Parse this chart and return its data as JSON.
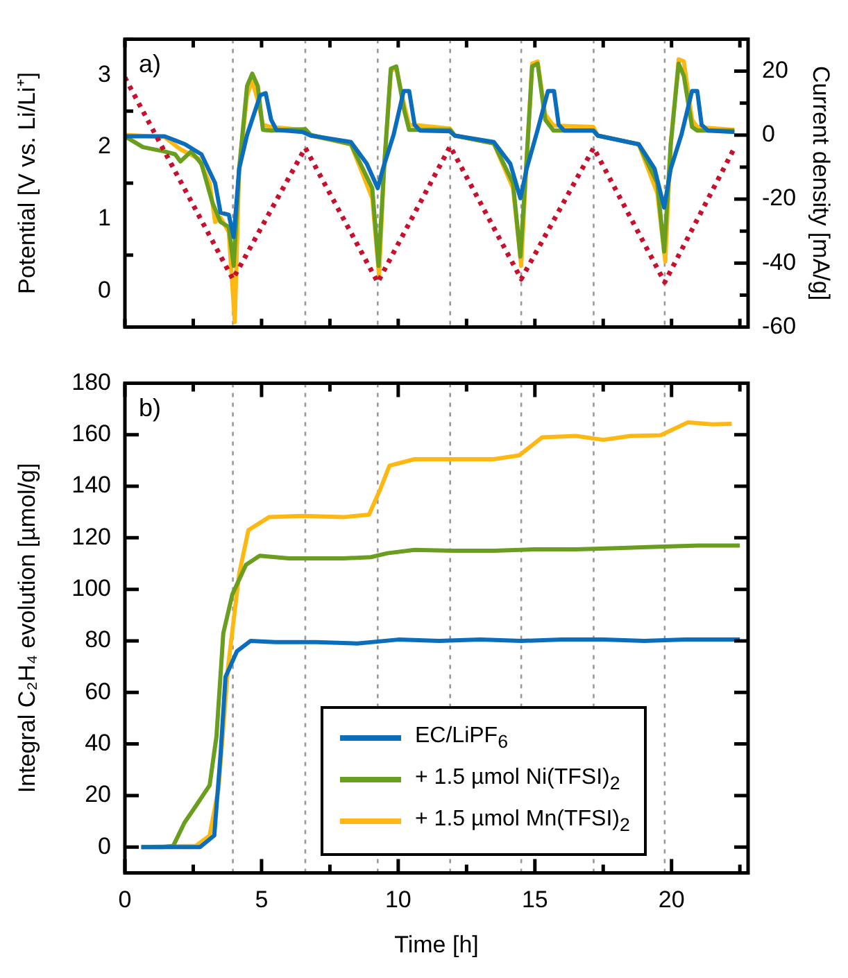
{
  "chart_data": [
    {
      "type": "line",
      "ylabel": "Potential [V vs. Li/Li⁺]",
      "y2label": "Current density [mA/g]",
      "annotations": [
        "a)"
      ],
      "tick_labels": "y",
      "xlim": [
        0,
        22.8
      ],
      "xticks": [
        {
          "value": 0,
          "label": null
        },
        {
          "value": 2.5,
          "label": null
        },
        {
          "value": 5,
          "label": null
        },
        {
          "value": 7.5,
          "label": null
        },
        {
          "value": 10,
          "label": null
        },
        {
          "value": 12.5,
          "label": null
        },
        {
          "value": 15,
          "label": null
        },
        {
          "value": 17.5,
          "label": null
        },
        {
          "value": 20,
          "label": null
        },
        {
          "value": 22.5,
          "label": null
        }
      ],
      "ylim": [
        -0.5,
        3.5
      ],
      "yticks": [
        {
          "value": -0.5,
          "label": null
        },
        0,
        {
          "value": 0.5,
          "label": null
        },
        1,
        {
          "value": 1.5,
          "label": null
        },
        2,
        {
          "value": 2.5,
          "label": null
        },
        3,
        {
          "value": 3.5,
          "label": null
        }
      ],
      "y2lim": [
        -60,
        30
      ],
      "y2ticks": [
        -60,
        {
          "value": -50,
          "label": null
        },
        -40,
        {
          "value": -30,
          "label": null
        },
        -20,
        {
          "value": -10,
          "label": null
        },
        0,
        {
          "value": 10,
          "label": null
        },
        20,
        {
          "value": 30,
          "label": null
        }
      ],
      "ref_lines": [
        {
          "axis": "x",
          "value": 3.95,
          "color": "#999999",
          "line_style": "dotted"
        },
        {
          "axis": "x",
          "value": 6.6,
          "color": "#999999",
          "line_style": "dotted"
        },
        {
          "axis": "x",
          "value": 9.25,
          "color": "#999999",
          "line_style": "dotted"
        },
        {
          "axis": "x",
          "value": 11.9,
          "color": "#999999",
          "line_style": "dotted"
        },
        {
          "axis": "x",
          "value": 14.5,
          "color": "#999999",
          "line_style": "dotted"
        },
        {
          "axis": "x",
          "value": 17.15,
          "color": "#999999",
          "line_style": "dotted"
        },
        {
          "axis": "x",
          "value": 19.75,
          "color": "#999999",
          "line_style": "dotted"
        }
      ],
      "series": [
        {
          "color": "#c8102e",
          "axis": "y2",
          "line_style": "dotted",
          "x": [
            0,
            3.95,
            6.6,
            9.25,
            11.9,
            14.5,
            17.15,
            19.75,
            22.3
          ],
          "values": [
            18,
            -45,
            -4,
            -46,
            -3.5,
            -45,
            -4,
            -46,
            -4
          ]
        },
        {
          "color": "#0a6ebd",
          "x": [
            0,
            1.45,
            2.2,
            2.8,
            3.3,
            3.5,
            3.8,
            3.98,
            4.18,
            4.47,
            4.95,
            5.15,
            5.35,
            5.54,
            6.5,
            6.8,
            8.27,
            8.85,
            9.25,
            9.44,
            9.83,
            10.2,
            10.4,
            10.6,
            10.8,
            11.88,
            12.07,
            13.5,
            14.1,
            14.47,
            14.7,
            15.1,
            15.48,
            15.7,
            15.87,
            16.07,
            17.14,
            17.3,
            18.8,
            19.38,
            19.73,
            19.97,
            20.36,
            20.75,
            20.94,
            21.1,
            21.33,
            22.3
          ],
          "values": [
            2.15,
            2.15,
            2.04,
            1.9,
            1.5,
            1.09,
            1.06,
            0.75,
            1.7,
            2.17,
            2.72,
            2.75,
            2.38,
            2.24,
            2.21,
            2.16,
            2.07,
            1.77,
            1.43,
            1.7,
            2.17,
            2.78,
            2.78,
            2.31,
            2.23,
            2.22,
            2.16,
            2.07,
            1.77,
            1.29,
            1.7,
            2.24,
            2.78,
            2.78,
            2.31,
            2.23,
            2.23,
            2.16,
            2.04,
            1.7,
            1.16,
            1.7,
            2.17,
            2.78,
            2.78,
            2.31,
            2.23,
            2.21
          ]
        },
        {
          "color": "#6a9e1f",
          "x": [
            0,
            0.66,
            1.45,
            1.84,
            2.03,
            2.42,
            2.8,
            3.2,
            3.5,
            3.8,
            3.98,
            4.18,
            4.47,
            4.66,
            4.86,
            5.05,
            5.35,
            6.6,
            6.8,
            8.27,
            9.05,
            9.28,
            9.48,
            9.73,
            9.93,
            10.22,
            10.4,
            11.9,
            12.07,
            13.5,
            14.2,
            14.47,
            14.7,
            14.9,
            15.1,
            15.38,
            15.68,
            17.14,
            17.3,
            18.8,
            19.48,
            19.73,
            19.97,
            20.26,
            20.45,
            20.75,
            20.94,
            22.3
          ],
          "values": [
            2.15,
            2.0,
            1.94,
            1.9,
            1.8,
            1.94,
            1.77,
            1.23,
            0.96,
            0.89,
            0.35,
            1.7,
            2.85,
            3.02,
            2.85,
            2.24,
            2.23,
            2.25,
            2.17,
            2.04,
            1.43,
            0.35,
            1.7,
            3.09,
            3.12,
            2.51,
            2.24,
            2.24,
            2.16,
            2.05,
            1.5,
            0.48,
            1.84,
            3.12,
            3.16,
            2.38,
            2.23,
            2.23,
            2.16,
            2.04,
            1.5,
            0.55,
            2.04,
            3.16,
            2.99,
            2.28,
            2.23,
            2.23
          ]
        },
        {
          "color": "#fdb813",
          "x": [
            0,
            1.45,
            2.03,
            2.7,
            3.1,
            3.3,
            3.5,
            3.8,
            4.02,
            4.18,
            4.47,
            4.66,
            4.86,
            5.05,
            5.35,
            6.5,
            6.8,
            8.27,
            9.05,
            9.3,
            9.48,
            9.73,
            9.93,
            10.22,
            10.4,
            10.8,
            11.88,
            12.07,
            13.5,
            14.2,
            14.5,
            14.7,
            14.9,
            15.1,
            15.38,
            15.68,
            17.14,
            17.3,
            18.8,
            19.48,
            19.77,
            19.97,
            20.26,
            20.45,
            20.75,
            20.94,
            22.3
          ],
          "values": [
            2.17,
            2.14,
            1.97,
            1.84,
            1.5,
            0.96,
            1.02,
            0.82,
            -0.43,
            1.7,
            2.72,
            2.92,
            2.65,
            2.31,
            2.28,
            2.24,
            2.16,
            2.04,
            1.29,
            0.21,
            1.7,
            3.06,
            3.09,
            2.58,
            2.31,
            2.3,
            2.26,
            2.16,
            2.05,
            1.43,
            0.35,
            1.84,
            3.16,
            3.19,
            2.45,
            2.3,
            2.28,
            2.16,
            2.04,
            1.36,
            0.41,
            2.04,
            3.22,
            3.19,
            2.38,
            2.28,
            2.24
          ]
        }
      ]
    },
    {
      "type": "line",
      "xlabel": "Time [h]",
      "ylabel": "Integral C₂H₄ evolution [µmol/g]",
      "annotations": [
        "b)"
      ],
      "legend": "bottom right",
      "xlim": [
        0,
        22.8
      ],
      "xticks": [
        0,
        {
          "value": 2.5,
          "label": null
        },
        5,
        {
          "value": 7.5,
          "label": null
        },
        10,
        {
          "value": 12.5,
          "label": null
        },
        15,
        {
          "value": 17.5,
          "label": null
        },
        20,
        {
          "value": 22.5,
          "label": null
        }
      ],
      "ylim": [
        -10,
        180
      ],
      "yticks": [
        0,
        20,
        40,
        60,
        80,
        100,
        120,
        140,
        160,
        180
      ],
      "ref_lines": [
        {
          "axis": "x",
          "value": 3.95,
          "color": "#999999",
          "line_style": "dotted"
        },
        {
          "axis": "x",
          "value": 6.6,
          "color": "#999999",
          "line_style": "dotted"
        },
        {
          "axis": "x",
          "value": 9.25,
          "color": "#999999",
          "line_style": "dotted"
        },
        {
          "axis": "x",
          "value": 11.9,
          "color": "#999999",
          "line_style": "dotted"
        },
        {
          "axis": "x",
          "value": 14.5,
          "color": "#999999",
          "line_style": "dotted"
        },
        {
          "axis": "x",
          "value": 17.15,
          "color": "#999999",
          "line_style": "dotted"
        },
        {
          "axis": "x",
          "value": 19.75,
          "color": "#999999",
          "line_style": "dotted"
        }
      ],
      "series": [
        {
          "name": "EC/LiPF$_{6}$",
          "color": "#0a6ebd",
          "x": [
            0.6,
            2.75,
            3.27,
            3.5,
            3.68,
            4.1,
            4.6,
            5.5,
            7,
            8.5,
            10,
            11.5,
            13,
            14.5,
            16,
            17.5,
            19,
            20.5,
            22.5
          ],
          "values": [
            0,
            0,
            4.5,
            36,
            66,
            76,
            80,
            79.5,
            79.5,
            79,
            80.5,
            80,
            80.5,
            80,
            80.5,
            80.5,
            80,
            80.5,
            80.5
          ]
        },
        {
          "name": "+ 1.5 µmol Ni(TFSI)$_{2}$",
          "color": "#6a9e1f",
          "x": [
            0.6,
            1.4,
            1.77,
            2.18,
            2.6,
            3.1,
            3.35,
            3.6,
            3.93,
            4.43,
            4.93,
            6,
            7,
            8,
            9,
            9.6,
            10.6,
            12,
            13.5,
            15,
            16.5,
            18,
            19.5,
            21,
            22.5
          ],
          "values": [
            0,
            0,
            0.5,
            9.5,
            16,
            24,
            43,
            83,
            98,
            109.5,
            113,
            112,
            112,
            112,
            112.5,
            114,
            115.3,
            115,
            115,
            115.5,
            115.5,
            116,
            116.5,
            117,
            117
          ]
        },
        {
          "name": "+ 1.5 µmol Mn(TFSI)$_{2}$",
          "color": "#fdb813",
          "x": [
            0.6,
            2.6,
            3.1,
            3.43,
            3.77,
            4.18,
            4.52,
            5.27,
            6.5,
            8,
            8.93,
            9.35,
            9.68,
            10.6,
            12,
            13.5,
            14.43,
            15.27,
            16.5,
            17.5,
            18.5,
            19.6,
            20.6,
            21.5,
            22.2
          ],
          "values": [
            0,
            0.5,
            4.5,
            23,
            69.5,
            106,
            123,
            128,
            128.5,
            128,
            129,
            139,
            148,
            150.5,
            150.5,
            150.5,
            152,
            159,
            159.5,
            158,
            159.5,
            159.8,
            164.8,
            164,
            164.2
          ]
        }
      ]
    }
  ]
}
